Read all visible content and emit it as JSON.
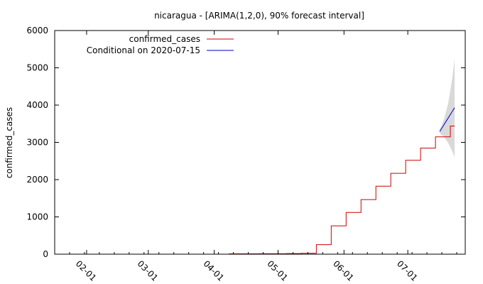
{
  "chart_data": {
    "type": "line",
    "title": "nicaragua -  [ARIMA(1,2,0), 90% forecast interval]",
    "xlabel": "",
    "ylabel": "confirmed_cases",
    "xlim": [
      "2020-01-17",
      "2020-07-28"
    ],
    "ylim": [
      0,
      6000
    ],
    "y_ticks": [
      0,
      1000,
      2000,
      3000,
      4000,
      5000,
      6000
    ],
    "x_ticks": [
      {
        "date": "2020-02-01",
        "label": "02-01"
      },
      {
        "date": "2020-03-01",
        "label": "03-01"
      },
      {
        "date": "2020-04-01",
        "label": "04-01"
      },
      {
        "date": "2020-05-01",
        "label": "05-01"
      },
      {
        "date": "2020-06-01",
        "label": "06-01"
      },
      {
        "date": "2020-07-01",
        "label": "07-01"
      }
    ],
    "grid": false,
    "legend_position": "top-left",
    "series": [
      {
        "name": "confirmed_cases",
        "color": "#cc0000",
        "style": "step",
        "points": [
          {
            "x": "2020-04-08",
            "y": 0
          },
          {
            "x": "2020-04-08",
            "y": 9
          },
          {
            "x": "2020-04-22",
            "y": 12
          },
          {
            "x": "2020-05-05",
            "y": 16
          },
          {
            "x": "2020-05-12",
            "y": 25
          },
          {
            "x": "2020-05-19",
            "y": 254
          },
          {
            "x": "2020-05-26",
            "y": 759
          },
          {
            "x": "2020-06-02",
            "y": 1118
          },
          {
            "x": "2020-06-09",
            "y": 1464
          },
          {
            "x": "2020-06-16",
            "y": 1823
          },
          {
            "x": "2020-06-23",
            "y": 2170
          },
          {
            "x": "2020-06-30",
            "y": 2519
          },
          {
            "x": "2020-07-07",
            "y": 2846
          },
          {
            "x": "2020-07-14",
            "y": 3147
          },
          {
            "x": "2020-07-21",
            "y": 3439
          },
          {
            "x": "2020-07-23",
            "y": 3439
          }
        ]
      },
      {
        "name": "Conditional on 2020-07-15",
        "color": "#0000cc",
        "style": "line",
        "points": [
          {
            "x": "2020-07-16",
            "y": 3290
          },
          {
            "x": "2020-07-23",
            "y": 3930
          }
        ]
      }
    ],
    "forecast_interval": {
      "color": "#d9d9d9",
      "points": [
        {
          "x": "2020-07-16",
          "lower": 3240,
          "upper": 3340
        },
        {
          "x": "2020-07-18",
          "lower": 3150,
          "upper": 3620
        },
        {
          "x": "2020-07-20",
          "lower": 2980,
          "upper": 4050
        },
        {
          "x": "2020-07-22",
          "lower": 2750,
          "upper": 4760
        },
        {
          "x": "2020-07-23",
          "lower": 2600,
          "upper": 5250
        }
      ]
    }
  }
}
